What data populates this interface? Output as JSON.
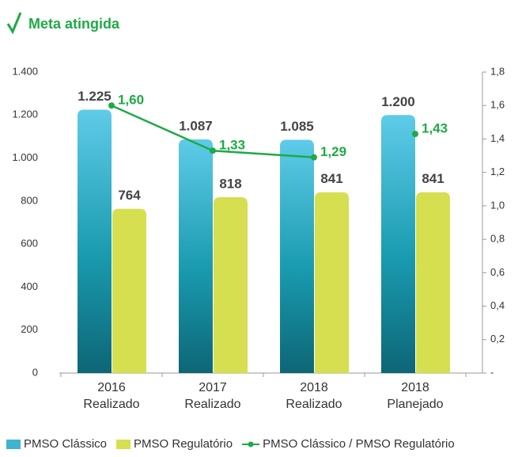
{
  "header": {
    "title": "Meta atingida"
  },
  "chart_data": {
    "type": "bar",
    "categories": [
      [
        "2016",
        "Realizado"
      ],
      [
        "2017",
        "Realizado"
      ],
      [
        "2018",
        "Realizado"
      ],
      [
        "2018",
        "Planejado"
      ]
    ],
    "series": [
      {
        "name": "PMSO Clássico",
        "color": "#3fb3cf",
        "values": [
          1225,
          1087,
          1085,
          1200
        ],
        "value_labels": [
          "1.225",
          "1.087",
          "1.085",
          "1.200"
        ]
      },
      {
        "name": "PMSO Regulatório",
        "color": "#d5df4f",
        "values": [
          764,
          818,
          841,
          841
        ]
      },
      {
        "name": "PMSO Clássico / PMSO Regulatório",
        "color": "#1eaa46",
        "type": "line",
        "axis": "y2",
        "values": [
          1.6,
          1.33,
          1.29,
          1.43
        ],
        "value_labels": [
          "1,60",
          "1,33",
          "1,29",
          "1,43"
        ]
      }
    ],
    "ylim": [
      0,
      1400
    ],
    "yticks": [
      0,
      200,
      400,
      600,
      800,
      {
        "value": 1000,
        "label": "1.000"
      },
      {
        "value": 1200,
        "label": "1.200"
      },
      {
        "value": 1400,
        "label": "1.400"
      }
    ],
    "y2lim": [
      0,
      1.8
    ],
    "y2ticks": [
      {
        "value": 0,
        "label": "-"
      },
      {
        "value": 0.2,
        "label": "0,2"
      },
      {
        "value": 0.4,
        "label": "0,4"
      },
      {
        "value": 0.6,
        "label": "0,6"
      },
      {
        "value": 0.8,
        "label": "0,8"
      },
      {
        "value": 1.0,
        "label": "1,0"
      },
      {
        "value": 1.2,
        "label": "1,2"
      },
      {
        "value": 1.4,
        "label": "1,4"
      },
      {
        "value": 1.6,
        "label": "1,6"
      },
      {
        "value": 1.8,
        "label": "1,8"
      }
    ],
    "legend": "bottom"
  }
}
